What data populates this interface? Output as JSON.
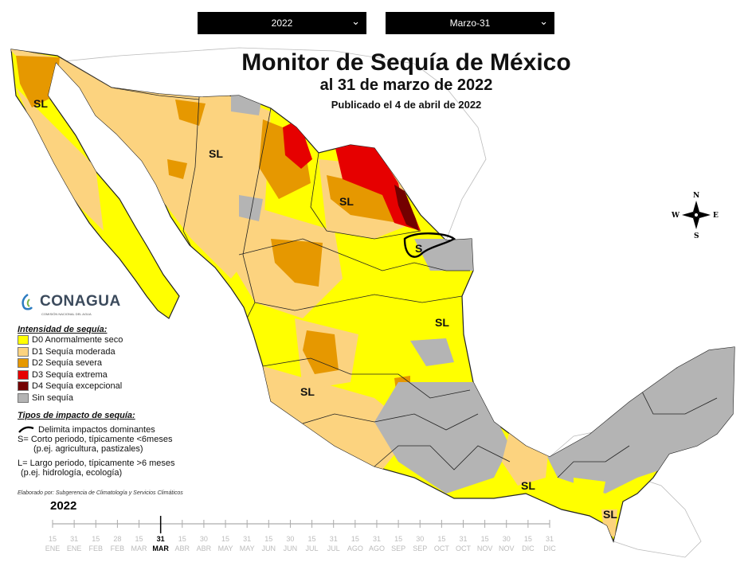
{
  "controls": {
    "year_select": {
      "value": "2022"
    },
    "date_select": {
      "value": "Marzo-31"
    }
  },
  "header": {
    "title": "Monitor de Sequía de México",
    "subtitle": "al 31 de marzo de 2022",
    "published": "Publicado el 4 de abril de 2022"
  },
  "logo": {
    "name": "CONAGUA",
    "tagline": "COMISIÓN NACIONAL DEL AGUA"
  },
  "legend": {
    "heading": "Intensidad de sequía:",
    "items": [
      {
        "label": "D0 Anormalmente seco",
        "color": "#ffff00"
      },
      {
        "label": "D1 Sequía moderada",
        "color": "#fcd37f"
      },
      {
        "label": "D2 Sequía severa",
        "color": "#e69800"
      },
      {
        "label": "D3 Sequía extrema",
        "color": "#e60000"
      },
      {
        "label": "D4 Sequía excepcional",
        "color": "#730000"
      },
      {
        "label": "Sin sequía",
        "color": "#b4b4b4"
      }
    ]
  },
  "impacts": {
    "heading": "Tipos de impacto de sequía:",
    "delimiter": "Delimita impactos dominantes",
    "short_line1": "S= Corto periodo, típicamente <6meses",
    "short_line2": "(p.ej. agricultura, pastizales)",
    "long_line1": "L= Largo periodo, típicamente >6 meses",
    "long_line2": "(p.ej. hidrología, ecología)"
  },
  "credit": "Elaborado por: Subgerencia de Climatología y Servicios Climáticos",
  "map_labels": [
    "SL",
    "SL",
    "SL",
    "S",
    "SL",
    "SL",
    "SL",
    "SL"
  ],
  "compass": {
    "n": "N",
    "s": "S",
    "e": "E",
    "w": "W"
  },
  "timeline": {
    "year": "2022",
    "days": [
      "15",
      "31",
      "15",
      "28",
      "15",
      "31",
      "15",
      "30",
      "15",
      "31",
      "15",
      "30",
      "15",
      "31",
      "15",
      "31",
      "15",
      "30",
      "15",
      "31",
      "15",
      "30",
      "15",
      "31"
    ],
    "months": [
      "ENE",
      "ENE",
      "FEB",
      "FEB",
      "MAR",
      "MAR",
      "ABR",
      "ABR",
      "MAY",
      "MAY",
      "JUN",
      "JUN",
      "JUL",
      "JUL",
      "AGO",
      "AGO",
      "SEP",
      "SEP",
      "OCT",
      "OCT",
      "NOV",
      "NOV",
      "DIC",
      "DIC"
    ],
    "current_index": 5
  }
}
